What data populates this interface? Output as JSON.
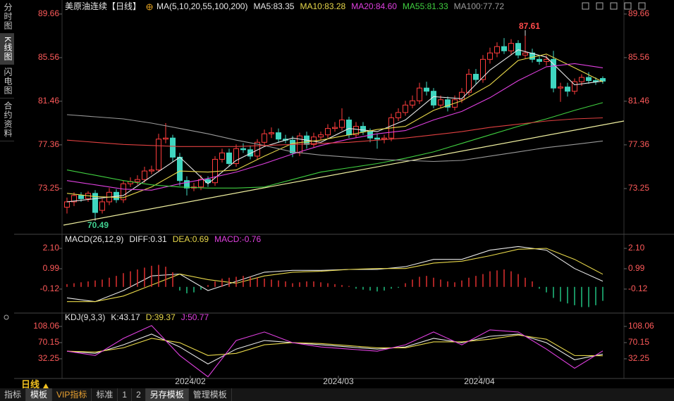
{
  "sidebar": [
    "分时图",
    "K线图",
    "闪电图",
    "合约资料"
  ],
  "period": "日线",
  "toolbar": [
    "指标",
    "模板",
    "VIP指标",
    "标准",
    "1",
    "2",
    "另存模板",
    "管理模板"
  ],
  "chart_data": [
    {
      "type": "candlestick",
      "title": "美原油连续【日线】",
      "subtitle": "MA(5,10,20,55,100,200)",
      "xlim": [
        -0.5,
        79
      ],
      "ylim": [
        69.15,
        90.45
      ],
      "yticks": [
        89.66,
        85.56,
        81.46,
        77.36,
        73.25
      ],
      "grid": false,
      "up_color": "#ff3c3c",
      "down_color": "#3fd6c0",
      "x": [
        0,
        1,
        2,
        3,
        4,
        5,
        6,
        7,
        8,
        9,
        10,
        11,
        12,
        13,
        14,
        15,
        16,
        17,
        18,
        19,
        20,
        21,
        22,
        23,
        24,
        25,
        26,
        27,
        28,
        29,
        30,
        31,
        32,
        33,
        34,
        35,
        36,
        37,
        38,
        39,
        40,
        41,
        42,
        43,
        44,
        45,
        46,
        47,
        48,
        49,
        50,
        51,
        52,
        53,
        54,
        55,
        56,
        57,
        58,
        59,
        60,
        61,
        62,
        63,
        64,
        65,
        66,
        67,
        68,
        69,
        70,
        71,
        72,
        73,
        74,
        75,
        76
      ],
      "open": [
        71.5,
        72.0,
        72.6,
        72.3,
        72.8,
        71.2,
        72.0,
        72.9,
        72.2,
        73.7,
        73.9,
        74.1,
        74.9,
        75.0,
        77.9,
        78.0,
        76.2,
        74.0,
        73.3,
        73.4,
        74.1,
        73.8,
        76.0,
        76.6,
        75.6,
        77.0,
        76.9,
        76.3,
        77.6,
        78.4,
        78.5,
        77.9,
        77.8,
        76.6,
        78.2,
        77.4,
        78.1,
        78.3,
        78.9,
        79.0,
        79.7,
        78.3,
        79.1,
        78.6,
        78.0,
        77.9,
        78.0,
        79.9,
        80.4,
        81.1,
        81.5,
        82.7,
        82.4,
        81.1,
        81.6,
        80.9,
        81.6,
        82.3,
        84.0,
        83.5,
        85.4,
        86.0,
        86.6,
        86.2,
        86.9,
        85.8,
        86.0,
        85.4,
        85.2,
        85.4,
        82.7,
        82.8,
        82.4,
        83.3,
        83.7,
        83.4,
        83.6
      ],
      "high": [
        72.4,
        72.9,
        72.9,
        73.0,
        73.1,
        72.3,
        73.3,
        73.2,
        74.0,
        74.3,
        74.5,
        75.3,
        75.4,
        78.4,
        79.4,
        78.3,
        76.6,
        74.4,
        73.8,
        74.5,
        74.4,
        76.3,
        77.0,
        77.0,
        77.4,
        77.5,
        77.3,
        77.9,
        78.8,
        79.0,
        78.9,
        78.3,
        78.2,
        78.5,
        78.6,
        78.5,
        78.6,
        79.3,
        79.5,
        80.8,
        80.0,
        79.5,
        79.5,
        78.9,
        78.4,
        78.3,
        80.3,
        80.8,
        81.5,
        82.0,
        83.2,
        83.3,
        82.7,
        82.0,
        81.9,
        82.0,
        82.7,
        84.5,
        84.5,
        85.8,
        86.5,
        87.0,
        87.4,
        87.3,
        87.2,
        87.61,
        86.4,
        85.7,
        85.8,
        86.2,
        83.2,
        83.2,
        83.6,
        84.0,
        84.2,
        83.7,
        83.8
      ],
      "low": [
        70.9,
        71.6,
        72.0,
        72.0,
        70.49,
        70.9,
        71.7,
        71.9,
        71.9,
        73.4,
        73.6,
        73.8,
        74.6,
        74.8,
        77.5,
        75.8,
        73.5,
        72.6,
        73.0,
        73.1,
        73.4,
        73.5,
        75.7,
        75.3,
        75.3,
        76.6,
        76.0,
        76.0,
        77.3,
        78.0,
        77.6,
        77.5,
        76.2,
        76.3,
        77.0,
        77.1,
        77.8,
        78.0,
        78.6,
        78.7,
        78.0,
        78.0,
        78.3,
        77.6,
        77.0,
        77.5,
        77.7,
        79.6,
        80.1,
        80.8,
        81.2,
        82.0,
        80.8,
        80.8,
        80.5,
        80.6,
        81.3,
        82.0,
        83.1,
        83.2,
        85.0,
        85.6,
        85.9,
        85.8,
        85.5,
        85.5,
        85.1,
        84.9,
        84.8,
        82.3,
        81.4,
        81.9,
        82.1,
        82.9,
        83.1,
        83.0,
        83.1
      ],
      "close": [
        72.0,
        72.6,
        72.3,
        72.8,
        71.0,
        72.0,
        72.9,
        72.2,
        73.7,
        73.9,
        74.1,
        74.9,
        75.0,
        77.9,
        78.0,
        76.2,
        74.0,
        73.3,
        73.4,
        74.1,
        73.8,
        76.0,
        76.6,
        75.6,
        77.0,
        76.9,
        76.3,
        77.6,
        78.4,
        78.5,
        77.9,
        77.8,
        76.6,
        78.2,
        77.4,
        78.1,
        78.3,
        78.9,
        79.0,
        79.7,
        78.3,
        79.1,
        78.6,
        78.0,
        77.9,
        78.0,
        79.9,
        80.4,
        81.1,
        81.5,
        82.7,
        82.4,
        81.1,
        81.6,
        80.9,
        81.6,
        82.3,
        84.0,
        83.5,
        85.4,
        86.0,
        86.6,
        86.2,
        86.9,
        85.8,
        86.0,
        85.4,
        85.2,
        85.4,
        82.7,
        82.8,
        82.4,
        83.3,
        83.7,
        83.4,
        83.3,
        83.35
      ],
      "series": [
        {
          "name": "MA5:83.35",
          "color": "#e8e8e8",
          "x": [
            0,
            4,
            8,
            12,
            16,
            20,
            24,
            28,
            32,
            36,
            40,
            44,
            48,
            52,
            56,
            60,
            64,
            68,
            72,
            76
          ],
          "values": [
            72.0,
            72.3,
            72.6,
            74.4,
            76.2,
            73.7,
            75.9,
            77.2,
            78.0,
            77.6,
            78.9,
            78.6,
            79.7,
            81.9,
            81.7,
            84.4,
            86.3,
            85.6,
            83.0,
            83.35
          ]
        },
        {
          "name": "MA10:83.28",
          "color": "#e8d84a",
          "x": [
            0,
            4,
            8,
            12,
            16,
            20,
            24,
            28,
            32,
            36,
            40,
            44,
            48,
            52,
            56,
            60,
            64,
            68,
            72,
            76
          ],
          "values": [
            72.8,
            72.5,
            72.4,
            73.4,
            74.9,
            74.8,
            75.0,
            76.3,
            77.5,
            77.8,
            78.3,
            78.8,
            79.1,
            80.6,
            81.5,
            83.0,
            85.3,
            85.9,
            84.6,
            83.28
          ]
        },
        {
          "name": "MA20:84.60",
          "color": "#e040e0",
          "x": [
            0,
            4,
            8,
            12,
            16,
            20,
            24,
            28,
            32,
            36,
            40,
            44,
            48,
            52,
            56,
            60,
            64,
            68,
            72,
            76
          ],
          "values": [
            74.0,
            73.6,
            73.2,
            73.1,
            73.7,
            74.2,
            74.8,
            75.6,
            76.5,
            77.3,
            77.9,
            78.4,
            78.7,
            79.7,
            80.5,
            81.8,
            83.4,
            84.7,
            85.0,
            84.6
          ]
        },
        {
          "name": "MA55:81.33",
          "color": "#40d040",
          "x": [
            0,
            4,
            8,
            12,
            16,
            20,
            24,
            28,
            32,
            36,
            40,
            44,
            48,
            52,
            56,
            60,
            64,
            68,
            72,
            76
          ],
          "values": [
            75.0,
            74.5,
            74.0,
            73.6,
            73.4,
            73.3,
            73.3,
            73.4,
            74.1,
            74.8,
            75.2,
            75.6,
            76.1,
            76.7,
            77.5,
            78.3,
            79.1,
            79.8,
            80.6,
            81.33
          ]
        },
        {
          "name": "MA100:77.72",
          "color": "#9a9a9a",
          "x": [
            0,
            4,
            8,
            12,
            16,
            20,
            24,
            28,
            32,
            36,
            40,
            44,
            48,
            52,
            56,
            60,
            64,
            68,
            72,
            76
          ],
          "values": [
            80.2,
            80.0,
            79.8,
            79.4,
            78.9,
            78.4,
            77.8,
            77.3,
            76.7,
            76.4,
            76.2,
            76.0,
            75.9,
            75.8,
            75.9,
            76.3,
            76.7,
            77.1,
            77.4,
            77.72
          ]
        },
        {
          "color": "#e04040",
          "x": [
            0,
            4,
            8,
            12,
            16,
            20,
            24,
            28,
            32,
            36,
            40,
            44,
            48,
            52,
            56,
            60,
            64,
            68,
            72,
            76
          ],
          "values": [
            77.8,
            77.6,
            77.4,
            77.3,
            77.2,
            77.2,
            77.2,
            77.3,
            77.4,
            77.5,
            77.6,
            77.8,
            78.0,
            78.3,
            78.6,
            79.0,
            79.3,
            79.6,
            79.8,
            79.9
          ]
        }
      ],
      "annotations": [
        {
          "x": 65,
          "value": 87.61,
          "color": "#ff4a4a"
        },
        {
          "x": 4,
          "value": 70.49,
          "color": "#40d090"
        }
      ]
    },
    {
      "type": "macd",
      "title": "MACD(26,12,9)",
      "xlim": [
        -0.5,
        79
      ],
      "ylim": [
        -1.35,
        2.6
      ],
      "yticks": [
        {
          "value": 2.1,
          "label": "2.10"
        },
        0.99,
        -0.12
      ],
      "series": [
        {
          "name": "DIFF:0.31",
          "color": "#e8e8e8",
          "x": [
            0,
            4,
            8,
            12,
            16,
            20,
            24,
            28,
            32,
            36,
            40,
            44,
            48,
            52,
            56,
            60,
            64,
            68,
            72,
            76
          ],
          "values": [
            -0.6,
            -0.8,
            -0.2,
            0.6,
            0.7,
            -0.2,
            0.3,
            0.8,
            0.9,
            0.9,
            0.95,
            0.95,
            1.1,
            1.5,
            1.5,
            2.0,
            2.2,
            2.0,
            1.0,
            0.31
          ]
        },
        {
          "name": "DEA:0.69",
          "color": "#e8d84a",
          "x": [
            0,
            4,
            8,
            12,
            16,
            20,
            24,
            28,
            32,
            36,
            40,
            44,
            48,
            52,
            56,
            60,
            64,
            68,
            72,
            76
          ],
          "values": [
            -0.8,
            -0.8,
            -0.5,
            0.1,
            0.7,
            0.4,
            0.2,
            0.6,
            0.8,
            0.85,
            0.95,
            1.0,
            1.0,
            1.3,
            1.4,
            1.7,
            2.05,
            2.1,
            1.5,
            0.69
          ]
        },
        {
          "name": "MACD:-0.76",
          "color": "#e040e0",
          "style": "bar",
          "up_color": "#e03030",
          "down_color": "#20c080",
          "x": [
            0,
            1,
            2,
            3,
            4,
            5,
            6,
            7,
            8,
            9,
            10,
            11,
            12,
            13,
            14,
            15,
            16,
            17,
            18,
            19,
            20,
            21,
            22,
            23,
            24,
            25,
            26,
            27,
            28,
            29,
            30,
            31,
            32,
            33,
            34,
            35,
            36,
            37,
            38,
            39,
            40,
            41,
            42,
            43,
            44,
            45,
            46,
            47,
            48,
            49,
            50,
            51,
            52,
            53,
            54,
            55,
            56,
            57,
            58,
            59,
            60,
            61,
            62,
            63,
            64,
            65,
            66,
            67,
            68,
            69,
            70,
            71,
            72,
            73,
            74,
            75,
            76
          ],
          "values": [
            0.15,
            0.2,
            0.25,
            0.3,
            0.35,
            0.4,
            0.5,
            0.6,
            0.75,
            0.85,
            0.95,
            1.05,
            1.15,
            1.2,
            1.1,
            0.8,
            -0.2,
            -0.35,
            -0.3,
            -0.15,
            0.1,
            0.3,
            0.45,
            0.5,
            0.55,
            0.6,
            0.55,
            0.5,
            0.45,
            0.4,
            0.35,
            0.3,
            0.2,
            0.25,
            0.3,
            0.3,
            0.25,
            0.2,
            0.15,
            0.1,
            0.05,
            -0.1,
            -0.15,
            -0.2,
            -0.25,
            -0.2,
            -0.1,
            -0.05,
            0.2,
            0.4,
            0.55,
            0.6,
            0.5,
            0.4,
            0.3,
            0.25,
            0.35,
            0.5,
            0.6,
            0.7,
            0.85,
            0.9,
            0.95,
            0.85,
            0.7,
            0.5,
            0.3,
            -0.1,
            -0.3,
            -0.6,
            -0.8,
            -0.9,
            -1.0,
            -1.1,
            -1.1,
            -1.0,
            -0.76
          ]
        }
      ]
    },
    {
      "type": "kdj",
      "title": "KDJ(9,3,3)",
      "xlim": [
        -0.5,
        79
      ],
      "ylim": [
        -13.9,
        131.1
      ],
      "yticks": [
        108.06,
        70.15,
        32.25
      ],
      "xticks": [
        {
          "value": 17.5,
          "label": "2024/02"
        },
        {
          "value": 38.5,
          "label": "2024/03"
        },
        {
          "value": 58.5,
          "label": "2024/04"
        }
      ],
      "series": [
        {
          "name": "K:43.17",
          "color": "#e8e8e8",
          "x": [
            0,
            4,
            8,
            12,
            16,
            20,
            24,
            28,
            32,
            36,
            40,
            44,
            48,
            52,
            56,
            60,
            64,
            68,
            72,
            76
          ],
          "values": [
            50,
            45,
            65,
            90,
            60,
            20,
            55,
            75,
            70,
            65,
            60,
            55,
            60,
            80,
            70,
            85,
            90,
            70,
            30,
            43.17
          ]
        },
        {
          "name": "D:39.37",
          "color": "#e8d84a",
          "x": [
            0,
            4,
            8,
            12,
            16,
            20,
            24,
            28,
            32,
            36,
            40,
            44,
            48,
            52,
            56,
            60,
            64,
            68,
            72,
            76
          ],
          "values": [
            50,
            48,
            58,
            80,
            70,
            40,
            45,
            65,
            70,
            68,
            63,
            58,
            58,
            72,
            72,
            78,
            88,
            78,
            40,
            39.37
          ]
        },
        {
          "name": "J:50.77",
          "color": "#e040e0",
          "x": [
            0,
            4,
            8,
            12,
            16,
            20,
            24,
            28,
            32,
            36,
            40,
            44,
            48,
            52,
            56,
            60,
            64,
            68,
            72,
            76
          ],
          "values": [
            50,
            40,
            80,
            110,
            40,
            -10,
            75,
            95,
            70,
            60,
            55,
            50,
            65,
            95,
            65,
            100,
            95,
            55,
            10,
            50.77
          ]
        }
      ]
    }
  ]
}
